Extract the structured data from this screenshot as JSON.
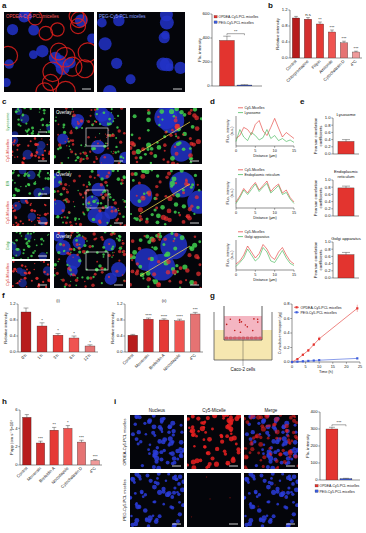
{
  "panel_labels": [
    "a",
    "b",
    "c",
    "d",
    "e",
    "f",
    "g",
    "h",
    "i"
  ],
  "images": {
    "a": {
      "labels": [
        "OPDEA-Cy5-PCL micelles",
        "PEG-Cy5-PCL micelles"
      ]
    },
    "c": {
      "rows": [
        [
          "Lysosome",
          "Cy5-Micelles"
        ],
        [
          "ER",
          "Cy5-Micelles"
        ],
        [
          "Golgi",
          "Cy5-Micelles"
        ]
      ],
      "overlay": "Overlay"
    },
    "g": {
      "label": "Caco-2 cells"
    },
    "i": {
      "columns": [
        "Nucleus",
        "Cy5-Micelle",
        "Merge"
      ],
      "rows": [
        "OPDEA-Cy5-PCL micelles",
        "PEG-Cy5-PCL micelles"
      ]
    }
  },
  "chart_data": [
    {
      "type": "bar",
      "ylabel": "Flu. intensity",
      "categories": [
        null
      ],
      "series": [
        {
          "name": "OPDEA-Cy5-PCL micelles",
          "color": "#e3342f",
          "values": [
            380
          ],
          "errors": [
            35
          ]
        },
        {
          "name": "PEG-Cy5-PCL micelles",
          "color": "#3b5bdb",
          "values": [
            8
          ],
          "errors": [
            3
          ]
        }
      ],
      "ylim": [
        0,
        600
      ],
      "yticks": [
        0,
        200,
        400,
        600
      ],
      "legend": "top",
      "annotation": "**"
    },
    {
      "type": "bar",
      "ylabel": "Relative intensity",
      "categories": [
        "Control",
        "Chlorpromazine",
        "Filipin",
        "Amiloride",
        "Cytochalasin D",
        "4°C"
      ],
      "values": [
        1.0,
        0.97,
        0.85,
        0.65,
        0.38,
        0.15
      ],
      "errors": [
        0.04,
        0.04,
        0.05,
        0.05,
        0.04,
        0.02
      ],
      "annotations": [
        null,
        "n.s",
        "**",
        "***",
        "***",
        "***"
      ],
      "colors": [
        "#b71c1c",
        "#d32f2f",
        "#e53935",
        "#ef5350",
        "#e57373",
        "#ef9a9a"
      ],
      "ylim": [
        0,
        1.2
      ],
      "yticks": [
        {
          "value": 0,
          "label": "0.0"
        },
        0.4,
        0.8,
        1.2
      ]
    },
    {
      "type": "line",
      "xlabel": "Distance (μm)",
      "ylabel": "Fluo. intensity (a.u.)",
      "x": [
        0,
        1,
        2,
        3,
        4,
        5,
        6,
        7,
        8,
        9,
        10,
        11,
        12,
        13,
        14,
        15
      ],
      "series": [
        {
          "name": "Cy5-Micelles",
          "color": "#e3342f",
          "values": [
            0.25,
            0.35,
            0.62,
            0.55,
            0.38,
            0.72,
            0.85,
            0.5,
            0.35,
            0.62,
            0.92,
            0.6,
            0.3,
            0.45,
            0.35,
            0.25
          ]
        },
        {
          "name": "Lysosome",
          "color": "#37b24d",
          "values": [
            0.15,
            0.55,
            0.3,
            0.18,
            0.45,
            0.35,
            0.2,
            0.28,
            0.55,
            0.25,
            0.35,
            0.18,
            0.25,
            0.15,
            0.2,
            0.12
          ]
        }
      ],
      "xlim": [
        0,
        15
      ],
      "xticks": [
        0,
        5,
        10,
        15
      ],
      "ylim": [
        0,
        1
      ],
      "tick_labels": "x",
      "legend": "above"
    },
    {
      "type": "line",
      "xlabel": "Distance (μm)",
      "ylabel": "Fluo. intensity (a.u.)",
      "x": [
        0,
        1,
        2,
        3,
        4,
        5,
        6,
        7,
        8,
        9,
        10,
        11,
        12,
        13,
        14,
        15
      ],
      "series": [
        {
          "name": "Cy5-Micelles",
          "color": "#e3342f",
          "values": [
            0.2,
            0.4,
            0.65,
            0.5,
            0.7,
            0.85,
            0.6,
            0.75,
            0.9,
            0.55,
            0.7,
            0.8,
            0.5,
            0.6,
            0.35,
            0.2
          ]
        },
        {
          "name": "Endoplasmic reticulum",
          "color": "#37b24d",
          "values": [
            0.15,
            0.35,
            0.6,
            0.45,
            0.62,
            0.8,
            0.55,
            0.7,
            0.82,
            0.5,
            0.62,
            0.75,
            0.45,
            0.52,
            0.3,
            0.15
          ]
        }
      ],
      "xlim": [
        0,
        15
      ],
      "xticks": [
        0,
        5,
        10,
        15
      ],
      "ylim": [
        0,
        1
      ],
      "tick_labels": "x",
      "legend": "above"
    },
    {
      "type": "line",
      "xlabel": "Distance (μm)",
      "ylabel": "Fluo. intensity (a.u.)",
      "x": [
        0,
        1,
        2,
        3,
        4,
        5,
        6,
        7,
        8,
        9,
        10,
        11,
        12,
        13,
        14,
        15
      ],
      "series": [
        {
          "name": "Cy5-Micelles",
          "color": "#e3342f",
          "values": [
            0.2,
            0.3,
            0.5,
            0.8,
            0.6,
            0.4,
            0.55,
            0.85,
            0.7,
            0.45,
            0.35,
            0.6,
            0.75,
            0.5,
            0.3,
            0.2
          ]
        },
        {
          "name": "Golgi apparatus",
          "color": "#37b24d",
          "values": [
            0.12,
            0.25,
            0.4,
            0.7,
            0.5,
            0.3,
            0.42,
            0.75,
            0.6,
            0.3,
            0.25,
            0.45,
            0.65,
            0.4,
            0.22,
            0.15
          ]
        }
      ],
      "xlim": [
        0,
        15
      ],
      "xticks": [
        0,
        5,
        10,
        15
      ],
      "ylim": [
        0,
        1
      ],
      "tick_labels": "x",
      "legend": "above"
    },
    {
      "type": "bar",
      "title": "Lysosome",
      "ylabel": "Pearson correlation coefficients",
      "categories": [
        null
      ],
      "values": [
        0.35
      ],
      "errors": [
        0.05
      ],
      "color": "#e3342f",
      "ylim": [
        0,
        1
      ],
      "yticks": [
        {
          "value": 0,
          "label": "0.0"
        },
        0.2,
        0.4,
        0.6,
        0.8,
        {
          "value": 1,
          "label": "1.0"
        }
      ]
    },
    {
      "type": "bar",
      "title": "Endoplasmic reticulum",
      "ylabel": "Pearson correlation coefficients",
      "categories": [
        null
      ],
      "values": [
        0.78
      ],
      "errors": [
        0.05
      ],
      "color": "#e3342f",
      "ylim": [
        0,
        1
      ],
      "yticks": [
        {
          "value": 0,
          "label": "0.0"
        },
        0.2,
        0.4,
        0.6,
        0.8,
        {
          "value": 1,
          "label": "1.0"
        }
      ]
    },
    {
      "type": "bar",
      "title": "Golgi apparatus",
      "ylabel": "Pearson correlation coefficients",
      "categories": [
        null
      ],
      "values": [
        0.65
      ],
      "errors": [
        0.06
      ],
      "color": "#e3342f",
      "ylim": [
        0,
        1
      ],
      "yticks": [
        {
          "value": 0,
          "label": "0.0"
        },
        0.2,
        0.4,
        0.6,
        0.8,
        {
          "value": 1,
          "label": "1.0"
        }
      ]
    },
    {
      "type": "bar",
      "title": "(i)",
      "ylabel": "Relative intensity",
      "categories": [
        "0 h",
        "1 h",
        "3 h",
        "6 h",
        "12 h"
      ],
      "values": [
        1.0,
        0.65,
        0.42,
        0.35,
        0.15
      ],
      "errors": [
        0.1,
        0.08,
        0.04,
        0.05,
        0.03
      ],
      "annotations": [
        null,
        "*",
        "*",
        "*",
        "*"
      ],
      "colors": [
        "#b71c1c",
        "#d32f2f",
        "#e53935",
        "#ef5350",
        "#e57373"
      ],
      "ylim": [
        0,
        1.2
      ],
      "yticks": [
        {
          "value": 0,
          "label": "0.0"
        },
        0.4,
        0.8,
        1.2
      ]
    },
    {
      "type": "bar",
      "title": "(ii)",
      "ylabel": "Relative intensity",
      "categories": [
        "Control",
        "Monensin",
        "Brefeldin A",
        "Nocodazole",
        "4°C"
      ],
      "values": [
        0.42,
        0.82,
        0.8,
        0.78,
        0.95
      ],
      "errors": [
        0.02,
        0.03,
        0.03,
        0.04,
        0.04
      ],
      "annotations": [
        null,
        "****",
        "****",
        "****",
        "***"
      ],
      "colors": [
        "#b71c1c",
        "#d32f2f",
        "#e53935",
        "#ef5350",
        "#e57373"
      ],
      "ylim": [
        0,
        1.2
      ],
      "yticks": [
        {
          "value": 0,
          "label": "0.0"
        },
        0.4,
        0.8,
        1.2
      ]
    },
    {
      "type": "line",
      "xlabel": "Time (h)",
      "ylabel": "Cumulative transport (μg)",
      "x": [
        0,
        2,
        4,
        6,
        8,
        10,
        24
      ],
      "series": [
        {
          "name": "OPDEA-Cy5-PCL micelles",
          "color": "#e3342f",
          "marker": "square",
          "values": [
            0,
            0.04,
            0.1,
            0.16,
            0.24,
            0.32,
            0.74
          ],
          "errors": [
            0,
            0.01,
            0.01,
            0.02,
            0.02,
            0.03,
            0.05
          ]
        },
        {
          "name": "PEG-Cy5-PCL micelles",
          "color": "#3b5bdb",
          "marker": "square",
          "values": [
            0,
            0.005,
            0.01,
            0.015,
            0.02,
            0.025,
            0.05
          ],
          "errors": [
            0,
            0.002,
            0.003,
            0.004,
            0.004,
            0.005,
            0.008
          ]
        }
      ],
      "xlim": [
        0,
        25
      ],
      "xticks": [
        0,
        5,
        10,
        15,
        20,
        25
      ],
      "ylim": [
        0,
        0.8
      ],
      "yticks": [
        {
          "value": 0,
          "label": "0.0"
        },
        0.2,
        0.4,
        0.6,
        0.8
      ],
      "legend": "upper left"
    },
    {
      "type": "bar",
      "ylabel": "Papp (cm s⁻¹)×10⁷",
      "categories": [
        "Control",
        "Monensin",
        "Brefeldin A",
        "Nocodazole",
        "Cytochalasin D",
        "4°C"
      ],
      "values": [
        5.2,
        2.4,
        3.8,
        4.0,
        2.5,
        0.5
      ],
      "errors": [
        0.3,
        0.2,
        0.3,
        0.3,
        0.2,
        0.1
      ],
      "annotations": [
        null,
        "***",
        "**",
        "*",
        "***",
        "***"
      ],
      "colors": [
        "#b71c1c",
        "#d32f2f",
        "#e53935",
        "#ef5350",
        "#e57373",
        "#ef9a9a"
      ],
      "ylim": [
        0,
        6
      ],
      "yticks": [
        0,
        2,
        4,
        6
      ]
    },
    {
      "type": "bar",
      "ylabel": "Flu. intensity",
      "categories": [
        null
      ],
      "series": [
        {
          "name": "OPDEA-Cy5-PCL micelles",
          "color": "#e3342f",
          "values": [
            300
          ],
          "errors": [
            10
          ]
        },
        {
          "name": "PEG-Cy5-PCL micelles",
          "color": "#3b5bdb",
          "values": [
            8
          ],
          "errors": [
            2
          ]
        }
      ],
      "ylim": [
        0,
        400
      ],
      "yticks": [
        0,
        100,
        200,
        300,
        400
      ],
      "legend": "bottom",
      "annotation": "***"
    }
  ]
}
